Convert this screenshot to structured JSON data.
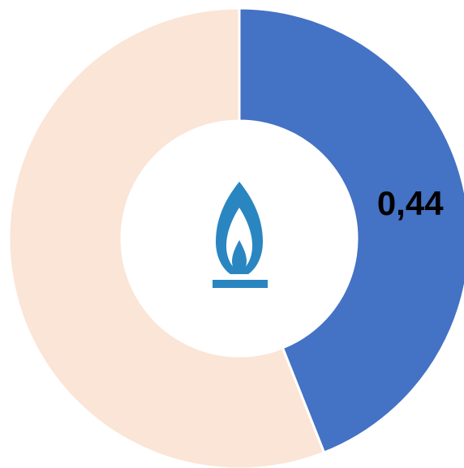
{
  "chart_data": {
    "type": "donut",
    "values": [
      0.44,
      0.56
    ],
    "value_labels": [
      "0,44",
      null
    ],
    "colors": [
      "#4472c4",
      "#fbe5d6"
    ]
  }
}
